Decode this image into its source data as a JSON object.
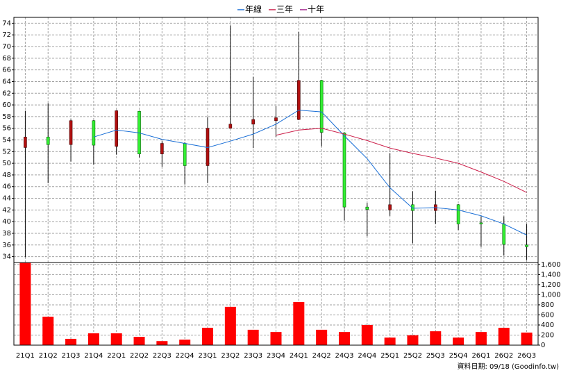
{
  "chart_data": [
    {
      "type": "candlestick",
      "categories": [
        "21Q1",
        "21Q2",
        "21Q3",
        "21Q4",
        "22Q1",
        "22Q2",
        "22Q3",
        "22Q4",
        "23Q1",
        "23Q2",
        "23Q3",
        "23Q4",
        "24Q1",
        "24Q2",
        "24Q3",
        "24Q4",
        "25Q1",
        "25Q2",
        "25Q3",
        "25Q4",
        "26Q1",
        "26Q2",
        "26Q3"
      ],
      "open": [
        52.7,
        54.5,
        53.2,
        57.3,
        52.9,
        58.9,
        51.6,
        53.4,
        49.6,
        56.0,
        56.7,
        57.3,
        57.5,
        64.2,
        55.2,
        42.5,
        42.0,
        42.9,
        41.9,
        42.9,
        39.8,
        39.6,
        36.0
      ],
      "high": [
        59.0,
        60.3,
        57.5,
        57.4,
        59.1,
        59.0,
        53.8,
        53.6,
        57.9,
        73.6,
        64.8,
        59.8,
        72.5,
        64.3,
        55.3,
        43.2,
        51.7,
        45.2,
        45.3,
        43.0,
        40.9,
        40.9,
        39.6
      ],
      "low": [
        33.9,
        46.6,
        50.3,
        49.8,
        51.5,
        51.0,
        49.4,
        46.4,
        46.6,
        56.0,
        52.6,
        54.5,
        57.4,
        52.9,
        40.2,
        37.5,
        41.0,
        36.3,
        39.6,
        38.6,
        35.7,
        34.2,
        33.4
      ],
      "close": [
        54.5,
        53.2,
        57.3,
        53.1,
        59.0,
        51.6,
        53.4,
        49.6,
        56.0,
        56.7,
        57.5,
        57.8,
        64.2,
        55.3,
        42.5,
        42.1,
        42.9,
        41.9,
        42.9,
        39.6,
        39.6,
        36.1,
        35.7
      ],
      "up_color": "#b01010",
      "down_color": "#33ee33",
      "series": [
        {
          "name": "年線",
          "color": "#1a6fd6",
          "values": [
            null,
            null,
            null,
            54.5,
            55.7,
            55.2,
            54.1,
            53.4,
            52.7,
            53.8,
            55.0,
            56.7,
            59.1,
            58.8,
            54.7,
            50.8,
            45.8,
            42.3,
            42.4,
            42.0,
            41.0,
            39.6,
            37.7
          ]
        },
        {
          "name": "三年",
          "color": "#cc1f4a",
          "values": [
            null,
            null,
            null,
            null,
            null,
            null,
            null,
            null,
            null,
            null,
            null,
            54.8,
            55.7,
            56.0,
            55.0,
            53.9,
            52.6,
            51.7,
            50.9,
            50.0,
            48.5,
            46.9,
            45.0
          ]
        },
        {
          "name": "十年",
          "color": "#a0208a",
          "values": [
            null,
            null,
            null,
            null,
            null,
            null,
            null,
            null,
            null,
            null,
            null,
            null,
            null,
            null,
            null,
            null,
            null,
            null,
            null,
            null,
            null,
            null,
            null
          ]
        }
      ],
      "ylim": [
        33,
        75
      ],
      "yticks": [
        34,
        36,
        38,
        40,
        42,
        44,
        46,
        48,
        50,
        52,
        54,
        56,
        58,
        60,
        62,
        64,
        66,
        68,
        70,
        72,
        74
      ],
      "grid": true
    },
    {
      "type": "bar",
      "values": [
        1630,
        565,
        125,
        235,
        235,
        165,
        80,
        110,
        345,
        760,
        305,
        260,
        855,
        305,
        260,
        400,
        150,
        195,
        275,
        150,
        260,
        345,
        250
      ],
      "color": "#ff0000",
      "ylim": [
        0,
        1640
      ],
      "yticks": [
        0,
        200,
        400,
        600,
        800,
        {
          "value": 1000,
          "label": "1,000"
        },
        {
          "value": 1200,
          "label": "1,200"
        },
        {
          "value": 1400,
          "label": "1,400"
        },
        {
          "value": 1600,
          "label": "1,600"
        }
      ],
      "grid": true
    }
  ],
  "footer": "資料日期: 09/18  (Goodinfo.tw)"
}
